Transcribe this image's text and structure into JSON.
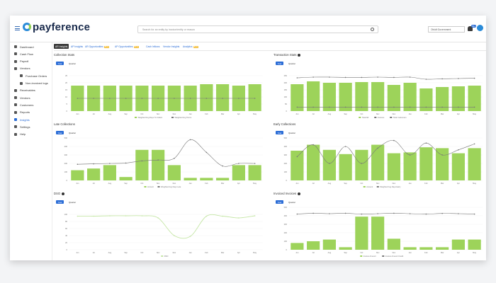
{
  "app": {
    "logo_text": "payference"
  },
  "header": {
    "search_placeholder": "Search for an entity by invoice/entity or reason",
    "company_selector": "Olvidt Government",
    "notification_count": "99+"
  },
  "sidebar": {
    "items": [
      {
        "label": "Dashboard",
        "icon": "dashboard-icon"
      },
      {
        "label": "Cash Flow",
        "icon": "cash-icon"
      },
      {
        "label": "Payroll",
        "icon": "payroll-icon"
      },
      {
        "label": "Vendors",
        "icon": "vendors-icon"
      },
      {
        "label": "Purchase Orders",
        "icon": "document-icon",
        "sub": true
      },
      {
        "label": "Non-invoiced logs",
        "icon": "document-icon",
        "sub": true
      },
      {
        "label": "Receivables",
        "icon": "receivables-icon"
      },
      {
        "label": "Vendors",
        "icon": "vendors-icon"
      },
      {
        "label": "Customers",
        "icon": "customers-icon"
      },
      {
        "label": "Reports",
        "icon": "reports-icon"
      },
      {
        "label": "Insights",
        "icon": "insights-icon",
        "active": true
      },
      {
        "label": "Settings",
        "icon": "settings-icon"
      },
      {
        "label": "Help",
        "icon": "help-icon"
      }
    ]
  },
  "tabs": [
    {
      "label": "AR Insights",
      "active": true
    },
    {
      "label": "AP Insights"
    },
    {
      "label": "AR Opportunities",
      "badge": "Beta"
    },
    {
      "label": "AP Opportunities",
      "badge": "Beta"
    },
    {
      "label": "Cash Inflows"
    },
    {
      "label": "Vendor Insights"
    },
    {
      "label": "Analytics",
      "badge": "Beta"
    }
  ],
  "toggle": {
    "year": "Year",
    "quarter": "Quarter"
  },
  "colors": {
    "bar": "#9dd35a",
    "line": "#777777",
    "accent": "#2a6cd6",
    "dso_line": "#c5e6a6"
  },
  "panels": [
    {
      "title": "Collection Stats",
      "info": false,
      "chart_data": {
        "type": "bar",
        "categories": [
          "Jun",
          "Jul",
          "Aug",
          "Sep",
          "Oct",
          "Nov",
          "Dec",
          "Jan",
          "Feb",
          "Mar",
          "Apr",
          "May"
        ],
        "ylim": [
          0,
          30
        ],
        "yticks": [
          0,
          5,
          10,
          15,
          20,
          25
        ],
        "values": [
          18,
          18,
          18,
          18,
          18,
          18,
          18,
          18,
          19,
          19,
          18,
          19
        ],
        "line": [
          9,
          9,
          9,
          9,
          9,
          9,
          9,
          9,
          9,
          9,
          9,
          9
        ],
        "legend": [
          "Weighted Avg Days To Collect",
          "Weighted Avg Terms"
        ]
      }
    },
    {
      "title": "Transaction Stats",
      "info": true,
      "chart_data": {
        "type": "bar",
        "categories": [
          "Jun",
          "Jul",
          "Aug",
          "Sep",
          "Oct",
          "Nov",
          "Dec",
          "Jan",
          "Feb",
          "Mar",
          "Apr",
          "May"
        ],
        "ylim": [
          0,
          300
        ],
        "yticks": [
          0,
          50,
          100,
          150,
          200,
          250
        ],
        "values": [
          190,
          210,
          200,
          200,
          205,
          205,
          185,
          200,
          160,
          170,
          175,
          180
        ],
        "line": [
          235,
          240,
          240,
          238,
          238,
          240,
          238,
          240,
          225,
          228,
          230,
          232
        ],
        "line2": [
          28,
          28,
          28,
          28,
          28,
          28,
          28,
          28,
          28,
          28,
          28,
          28
        ],
        "legend": [
          "Total AR",
          "Invoices",
          "Total Customers"
        ]
      }
    },
    {
      "title": "Late Collections",
      "info": false,
      "chart_data": {
        "type": "bar",
        "categories": [
          "Jun",
          "Jul",
          "Aug",
          "Sep",
          "Oct",
          "Nov",
          "Dec",
          "Jan",
          "Feb",
          "Mar",
          "Apr",
          "May"
        ],
        "ylim": [
          0,
          500
        ],
        "yticks": [
          0,
          100,
          200,
          300,
          400,
          500
        ],
        "values": [
          120,
          140,
          180,
          40,
          360,
          360,
          180,
          30,
          30,
          30,
          180,
          180
        ],
        "line": [
          190,
          195,
          200,
          205,
          230,
          240,
          260,
          480,
          330,
          170,
          200,
          200
        ],
        "legend": [
          "Amount",
          "Weighted Avg Days Late"
        ]
      }
    },
    {
      "title": "Early Collections",
      "info": false,
      "chart_data": {
        "type": "bar",
        "categories": [
          "Jun",
          "Jul",
          "Aug",
          "Sep",
          "Oct",
          "Nov",
          "Dec",
          "Jan",
          "Feb",
          "Mar",
          "Apr",
          "May"
        ],
        "ylim": [
          0,
          500
        ],
        "yticks": [
          0,
          100,
          200,
          300,
          400,
          500
        ],
        "values": [
          350,
          420,
          360,
          310,
          360,
          420,
          320,
          330,
          390,
          380,
          320,
          380
        ],
        "line": [
          280,
          420,
          200,
          400,
          200,
          380,
          470,
          300,
          440,
          300,
          360,
          430
        ],
        "legend": [
          "Amount",
          "Weighted Avg Days Early"
        ]
      }
    },
    {
      "title": "DSO",
      "info": true,
      "chart_data": {
        "type": "line",
        "categories": [
          "Jun",
          "Jul",
          "Aug",
          "Sep",
          "Oct",
          "Nov",
          "Dec",
          "Jan",
          "Feb",
          "Mar",
          "Apr",
          "May"
        ],
        "ylim": [
          0,
          120
        ],
        "yticks": [
          0,
          20,
          40,
          60,
          80,
          100
        ],
        "values": [
          95,
          95,
          96,
          96,
          96,
          90,
          40,
          38,
          95,
          95,
          90,
          96
        ],
        "legend": [
          "DSO"
        ]
      }
    },
    {
      "title": "Invoiced Invoices",
      "info": true,
      "chart_data": {
        "type": "bar",
        "categories": [
          "Jun",
          "Jul",
          "Aug",
          "Sep",
          "Oct",
          "Nov",
          "Dec",
          "Jan",
          "Feb",
          "Mar",
          "Apr",
          "May"
        ],
        "ylim": [
          0,
          500
        ],
        "yticks": [
          0,
          100,
          200,
          300,
          400,
          500
        ],
        "values": [
          80,
          100,
          120,
          30,
          390,
          390,
          130,
          30,
          30,
          30,
          120,
          120
        ],
        "line": [
          420,
          430,
          425,
          430,
          420,
          425,
          430,
          425,
          420,
          428,
          425,
          420
        ],
        "legend": [
          "Invoice Amount",
          "Invoice Amount Credit"
        ]
      }
    }
  ]
}
